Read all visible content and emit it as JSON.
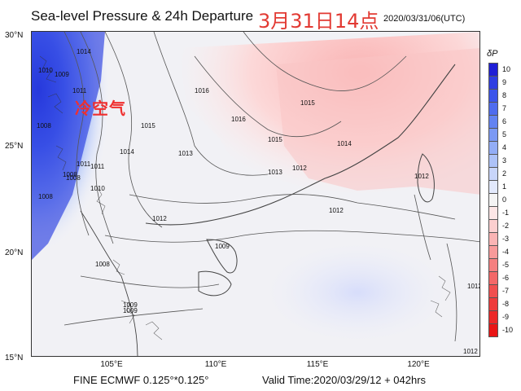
{
  "header": {
    "title": "Sea-level Pressure & 24h Departure",
    "title_local": "3月31日14点",
    "timestamp": "2020/03/31/06(UTC)"
  },
  "map": {
    "latitude_labels": [
      "30°N",
      "25°N",
      "20°N",
      "15°N"
    ],
    "longitude_labels": [
      "105°E",
      "110°E",
      "115°E",
      "120°E"
    ],
    "annotation_cold_air": "冷空气",
    "isobar_labels": [
      "1014",
      "1010",
      "1009",
      "1011",
      "1008",
      "1016",
      "1015",
      "1013",
      "1012",
      "1012",
      "1011",
      "1009",
      "1008",
      "1009",
      "1014",
      "1015",
      "1016",
      "1015",
      "1014",
      "1013",
      "1012",
      "1012",
      "1012",
      "1012",
      "1011",
      "1010",
      "1008",
      "1008",
      "1008",
      "1009"
    ]
  },
  "colorbar": {
    "title": "δP",
    "levels": [
      "10",
      "9",
      "8",
      "7",
      "6",
      "5",
      "4",
      "3",
      "2",
      "1",
      "0",
      "-1",
      "-2",
      "-3",
      "-4",
      "-5",
      "-6",
      "-7",
      "-8",
      "-9",
      "-10"
    ],
    "colors": [
      "#1f1fd6",
      "#2f3ee2",
      "#3c55ea",
      "#4f6cee",
      "#6383f2",
      "#7b99f4",
      "#93adf6",
      "#adc2f8",
      "#c8d5fa",
      "#e2e9fc",
      "#f4f4f4",
      "#fde6e6",
      "#fccfcf",
      "#fab4b4",
      "#f89a9a",
      "#f58080",
      "#f36868",
      "#f04f4f",
      "#ee3b3b",
      "#ec2828",
      "#e91515"
    ]
  },
  "footer": {
    "model": "FINE ECMWF 0.125°*0.125°",
    "valid_time": "Valid Time:2020/03/29/12 + 042hrs"
  }
}
